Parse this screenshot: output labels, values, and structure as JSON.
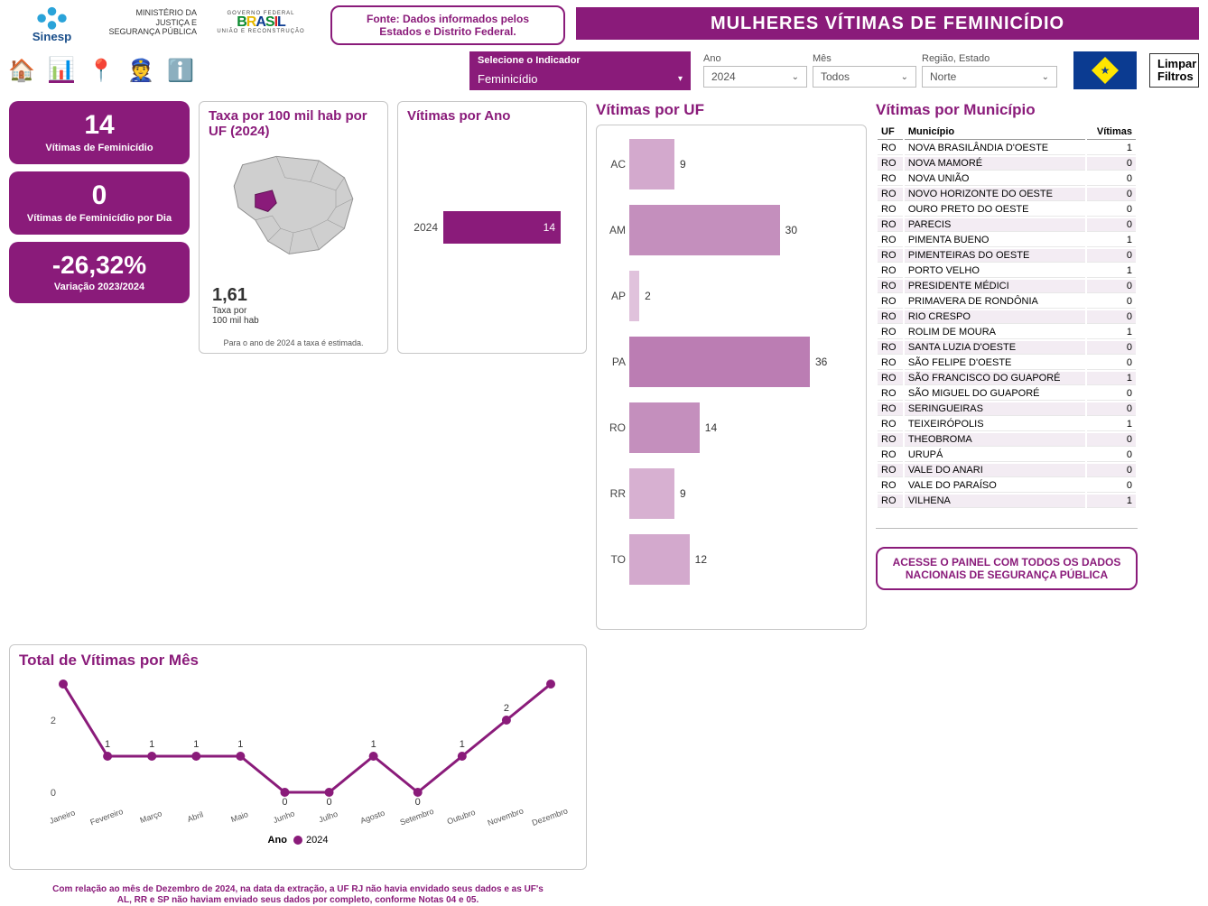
{
  "header": {
    "mj_text": "MINISTÉRIO DA\nJUSTIÇA E\nSEGURANÇA PÚBLICA",
    "brasil_top": "GOVERNO FEDERAL",
    "brasil_word": "BRASIL",
    "brasil_sub": "UNIÃO E RECONSTRUÇÃO",
    "fonte": "Fonte: Dados informados pelos Estados e Distrito Federal.",
    "title": "MULHERES VÍTIMAS DE FEMINICÍDIO"
  },
  "nav": {
    "indicador_label": "Selecione o Indicador",
    "indicador_value": "Feminicídio",
    "filters": {
      "ano": {
        "label": "Ano",
        "value": "2024"
      },
      "mes": {
        "label": "Mês",
        "value": "Todos"
      },
      "regiao": {
        "label": "Região, Estado",
        "value": "Norte"
      }
    },
    "clear": "Limpar\nFiltros"
  },
  "kpi": {
    "k1_big": "14",
    "k1_sub": "Vítimas de Feminicídio",
    "k2_big": "0",
    "k2_sub": "Vítimas de Feminicídio por Dia",
    "k3_big": "-26,32%",
    "k3_sub": "Variação 2023/2024"
  },
  "map": {
    "title": "Taxa por 100 mil hab por UF (2024)",
    "value": "1,61",
    "value_label": "Taxa por\n100 mil hab",
    "foot": "Para o ano de 2024 a taxa é estimada."
  },
  "year": {
    "title": "Vítimas por Ano",
    "rows": [
      {
        "label": "2024",
        "value": 14
      }
    ],
    "max": 14,
    "bar_color": "#8a1b7a"
  },
  "uf": {
    "title": "Vítimas por UF",
    "max": 36,
    "rows": [
      {
        "label": "AC",
        "value": 9,
        "color": "#d3a9cd"
      },
      {
        "label": "AM",
        "value": 30,
        "color": "#c48fbd"
      },
      {
        "label": "AP",
        "value": 2,
        "color": "#e0c2dc"
      },
      {
        "label": "PA",
        "value": 36,
        "color": "#bb7db3"
      },
      {
        "label": "RO",
        "value": 14,
        "color": "#c48fbd"
      },
      {
        "label": "RR",
        "value": 9,
        "color": "#d7b0d1"
      },
      {
        "label": "TO",
        "value": 12,
        "color": "#d3a9cd"
      }
    ]
  },
  "mun": {
    "title": "Vítimas por Município",
    "cols": [
      "UF",
      "Município",
      "Vítimas"
    ],
    "rows": [
      [
        "RO",
        "NOVA BRASILÂNDIA D'OESTE",
        "1"
      ],
      [
        "RO",
        "NOVA MAMORÉ",
        "0"
      ],
      [
        "RO",
        "NOVA UNIÃO",
        "0"
      ],
      [
        "RO",
        "NOVO HORIZONTE DO OESTE",
        "0"
      ],
      [
        "RO",
        "OURO PRETO DO OESTE",
        "0"
      ],
      [
        "RO",
        "PARECIS",
        "0"
      ],
      [
        "RO",
        "PIMENTA BUENO",
        "1"
      ],
      [
        "RO",
        "PIMENTEIRAS DO OESTE",
        "0"
      ],
      [
        "RO",
        "PORTO VELHO",
        "1"
      ],
      [
        "RO",
        "PRESIDENTE MÉDICI",
        "0"
      ],
      [
        "RO",
        "PRIMAVERA DE RONDÔNIA",
        "0"
      ],
      [
        "RO",
        "RIO CRESPO",
        "0"
      ],
      [
        "RO",
        "ROLIM DE MOURA",
        "1"
      ],
      [
        "RO",
        "SANTA LUZIA D'OESTE",
        "0"
      ],
      [
        "RO",
        "SÃO FELIPE D'OESTE",
        "0"
      ],
      [
        "RO",
        "SÃO FRANCISCO DO GUAPORÉ",
        "1"
      ],
      [
        "RO",
        "SÃO MIGUEL DO GUAPORÉ",
        "0"
      ],
      [
        "RO",
        "SERINGUEIRAS",
        "0"
      ],
      [
        "RO",
        "TEIXEIRÓPOLIS",
        "1"
      ],
      [
        "RO",
        "THEOBROMA",
        "0"
      ],
      [
        "RO",
        "URUPÁ",
        "0"
      ],
      [
        "RO",
        "VALE DO ANARI",
        "0"
      ],
      [
        "RO",
        "VALE DO PARAÍSO",
        "0"
      ],
      [
        "RO",
        "VILHENA",
        "1"
      ]
    ],
    "access_btn": "ACESSE O PAINEL COM TODOS OS DADOS NACIONAIS DE SEGURANÇA PÚBLICA"
  },
  "month": {
    "title": "Total de Vítimas por Mês",
    "x": [
      "Janeiro",
      "Fevereiro",
      "Março",
      "Abril",
      "Maio",
      "Junho",
      "Julho",
      "Agosto",
      "Setembro",
      "Outubro",
      "Novembro",
      "Dezembro"
    ],
    "y": [
      3,
      1,
      1,
      1,
      1,
      0,
      0,
      1,
      0,
      1,
      2,
      3
    ],
    "yticks": [
      0,
      2
    ],
    "line_color": "#8a1b7a",
    "legend_label": "Ano",
    "legend_series": "2024"
  },
  "footnote": "Com relação ao mês de Dezembro de 2024, na data da extração, a UF RJ não havia envidado seus dados e as UF's AL, RR e SP não haviam enviado seus dados por completo, conforme Notas 04 e 05."
}
